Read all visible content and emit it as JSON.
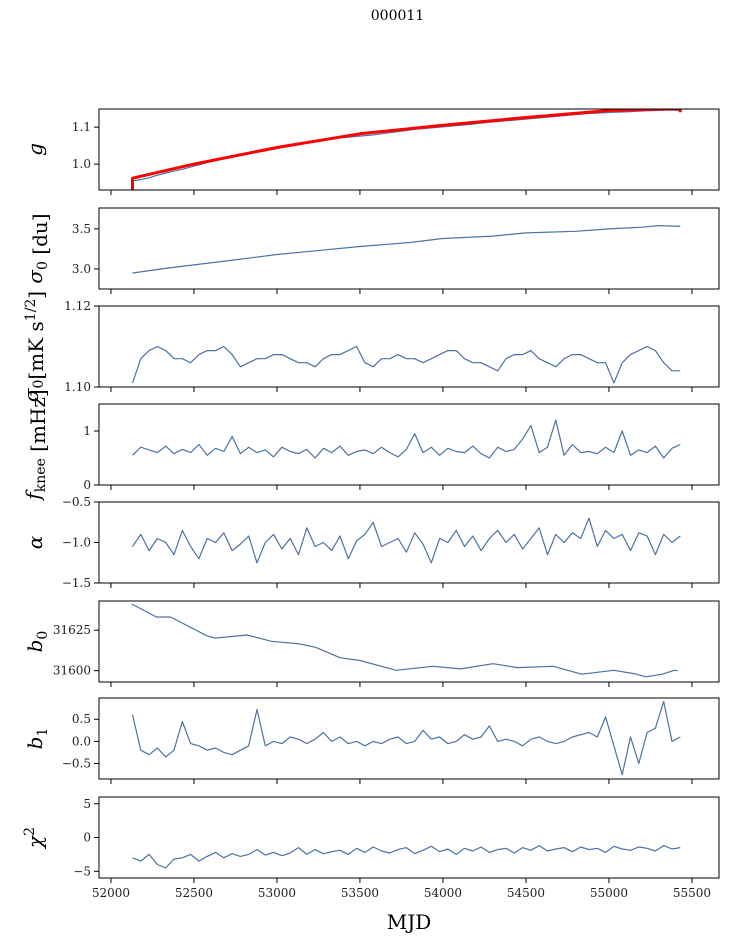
{
  "title": "000011",
  "chart_data": {
    "type": "line",
    "title": "000011",
    "xlabel": "MJD",
    "xlim": [
      51928,
      55663
    ],
    "xticks": [
      52000,
      52500,
      53000,
      53500,
      54000,
      54500,
      55000,
      55500
    ],
    "line_color": "#4c72a4",
    "model_color": "#ff0000",
    "panels": [
      {
        "name": "g",
        "ylabel": {
          "base": "g",
          "sub": "",
          "sup": "",
          "unit": ""
        },
        "ylim": [
          0.93,
          1.149
        ],
        "yticks": [
          1.0,
          1.1
        ],
        "ytick_labels": [
          "1.0",
          "1.1"
        ],
        "series": [
          {
            "name": "g",
            "x_start": 52130,
            "x_step": 50,
            "y": [
              0.955,
              0.958,
              0.963,
              0.97,
              0.976,
              0.981,
              0.986,
              0.992,
              0.998,
              1.004,
              1.01,
              1.016,
              1.022,
              1.027,
              1.03,
              1.033,
              1.036,
              1.04,
              1.045,
              1.05,
              1.055,
              1.058,
              1.061,
              1.064,
              1.068,
              1.071,
              1.073,
              1.075,
              1.077,
              1.079,
              1.082,
              1.085,
              1.088,
              1.091,
              1.094,
              1.096,
              1.098,
              1.1,
              1.102,
              1.104,
              1.106,
              1.108,
              1.111,
              1.113,
              1.115,
              1.117,
              1.119,
              1.121,
              1.123,
              1.125,
              1.127,
              1.129,
              1.131,
              1.133,
              1.135,
              1.137,
              1.138,
              1.139,
              1.14,
              1.141,
              1.142,
              1.143,
              1.144,
              1.145,
              1.146,
              1.146,
              1.145
            ]
          },
          {
            "name": "model",
            "model": true,
            "x": [
              52130,
              52130,
              52500,
              53000,
              53500,
              54000,
              54500,
              55000,
              55430,
              55430
            ],
            "y": [
              0.93,
              0.962,
              1.0,
              1.045,
              1.082,
              1.105,
              1.126,
              1.145,
              1.15,
              1.14
            ]
          }
        ]
      },
      {
        "name": "sigma0-du",
        "ylabel": {
          "base": "σ",
          "sub": "0",
          "sup": "",
          "unit": " [du]"
        },
        "ylim": [
          2.75,
          3.76
        ],
        "yticks": [
          3.0,
          3.5
        ],
        "ytick_labels": [
          "3.0",
          "3.5"
        ],
        "series": [
          {
            "name": "sigma0_du",
            "x": [
              52130,
              52300,
              52500,
              52700,
              53000,
              53200,
              53500,
              53800,
              54000,
              54300,
              54500,
              54800,
              55000,
              55200,
              55300,
              55430
            ],
            "y": [
              2.95,
              3.0,
              3.05,
              3.1,
              3.18,
              3.22,
              3.28,
              3.33,
              3.38,
              3.41,
              3.45,
              3.47,
              3.5,
              3.52,
              3.54,
              3.53
            ]
          }
        ]
      },
      {
        "name": "sigma0-mk",
        "ylabel": {
          "base": "σ",
          "sub": "0",
          "sup": "1/2",
          "unit": "[mK s"
        },
        "ylim": [
          1.1,
          1.12
        ],
        "yticks": [
          1.1,
          1.12
        ],
        "ytick_labels": [
          "1.10",
          "1.12"
        ],
        "series": [
          {
            "name": "sigma0_mK",
            "x_start": 52130,
            "x_step": 50,
            "y": [
              1.101,
              1.107,
              1.109,
              1.11,
              1.109,
              1.107,
              1.107,
              1.106,
              1.108,
              1.109,
              1.109,
              1.11,
              1.108,
              1.105,
              1.106,
              1.107,
              1.107,
              1.108,
              1.108,
              1.107,
              1.106,
              1.106,
              1.105,
              1.107,
              1.108,
              1.108,
              1.109,
              1.11,
              1.106,
              1.105,
              1.107,
              1.107,
              1.108,
              1.107,
              1.107,
              1.106,
              1.107,
              1.108,
              1.109,
              1.109,
              1.107,
              1.106,
              1.106,
              1.105,
              1.104,
              1.107,
              1.108,
              1.108,
              1.109,
              1.107,
              1.106,
              1.105,
              1.107,
              1.108,
              1.108,
              1.107,
              1.106,
              1.106,
              1.101,
              1.106,
              1.108,
              1.109,
              1.11,
              1.109,
              1.106,
              1.104,
              1.104
            ]
          }
        ]
      },
      {
        "name": "fknee",
        "ylabel": {
          "base": "f",
          "sub": "knee",
          "sup": "",
          "unit": " [mHz]"
        },
        "ylim": [
          0,
          1.5
        ],
        "yticks": [
          0,
          1
        ],
        "ytick_labels": [
          "0",
          "1"
        ],
        "series": [
          {
            "name": "fknee",
            "x_start": 52130,
            "x_step": 50,
            "y": [
              0.55,
              0.7,
              0.65,
              0.6,
              0.72,
              0.58,
              0.66,
              0.6,
              0.75,
              0.55,
              0.68,
              0.62,
              0.9,
              0.58,
              0.7,
              0.6,
              0.65,
              0.52,
              0.7,
              0.62,
              0.58,
              0.66,
              0.5,
              0.68,
              0.6,
              0.72,
              0.55,
              0.62,
              0.65,
              0.58,
              0.7,
              0.6,
              0.52,
              0.66,
              0.95,
              0.6,
              0.7,
              0.55,
              0.68,
              0.62,
              0.6,
              0.72,
              0.58,
              0.5,
              0.7,
              0.62,
              0.66,
              0.85,
              1.1,
              0.6,
              0.7,
              1.2,
              0.55,
              0.75,
              0.6,
              0.62,
              0.58,
              0.7,
              0.6,
              1.0,
              0.55,
              0.65,
              0.6,
              0.72,
              0.5,
              0.68,
              0.75
            ]
          }
        ]
      },
      {
        "name": "alpha",
        "ylabel": {
          "base": "α",
          "sub": "",
          "sup": "",
          "unit": ""
        },
        "ylim": [
          -1.5,
          -0.5
        ],
        "yticks": [
          -1.5,
          -1.0,
          -0.5
        ],
        "ytick_labels": [
          "−1.5",
          "−1.0",
          "−0.5"
        ],
        "series": [
          {
            "name": "alpha",
            "x_start": 52130,
            "x_step": 50,
            "y": [
              -1.05,
              -0.9,
              -1.1,
              -0.95,
              -1.0,
              -1.15,
              -0.85,
              -1.05,
              -1.2,
              -0.95,
              -1.0,
              -0.88,
              -1.1,
              -1.02,
              -0.92,
              -1.25,
              -1.0,
              -0.9,
              -1.08,
              -0.95,
              -1.15,
              -0.82,
              -1.05,
              -1.0,
              -1.1,
              -0.92,
              -1.2,
              -0.98,
              -0.9,
              -0.75,
              -1.05,
              -1.0,
              -0.95,
              -1.12,
              -0.88,
              -1.02,
              -1.25,
              -0.95,
              -1.0,
              -0.85,
              -1.05,
              -0.92,
              -1.1,
              -0.95,
              -0.85,
              -1.0,
              -0.9,
              -1.08,
              -0.95,
              -0.82,
              -1.15,
              -0.9,
              -1.0,
              -0.88,
              -0.95,
              -0.7,
              -1.05,
              -0.85,
              -0.95,
              -0.9,
              -1.1,
              -0.88,
              -0.92,
              -1.15,
              -0.9,
              -1.0,
              -0.92
            ]
          }
        ]
      },
      {
        "name": "b0",
        "ylabel": {
          "base": "b",
          "sub": "0",
          "sup": "",
          "unit": ""
        },
        "ylim": [
          31593,
          31643
        ],
        "yticks": [
          31600,
          31625
        ],
        "ytick_labels": [
          "31600",
          "31625"
        ],
        "series": [
          {
            "name": "b0",
            "x": [
              52124,
              52274,
              52359,
              52578,
              52626,
              52820,
              52966,
              53136,
              53233,
              53379,
              53500,
              53718,
              53937,
              54107,
              54301,
              54447,
              54665,
              54835,
              55029,
              55150,
              55223,
              55320,
              55393,
              55414
            ],
            "y": [
              31641.2,
              31633.1,
              31633.1,
              31621.5,
              31620.1,
              31622,
              31618.1,
              31616.5,
              31614.4,
              31608,
              31606.3,
              31600.2,
              31602.7,
              31601.1,
              31604.3,
              31601.9,
              31602.7,
              31597.8,
              31600.2,
              31598.2,
              31596.2,
              31597.8,
              31600.2,
              31600
            ]
          }
        ]
      },
      {
        "name": "b1",
        "ylabel": {
          "base": "b",
          "sub": "1",
          "sup": "",
          "unit": ""
        },
        "ylim": [
          -0.85,
          0.98
        ],
        "yticks": [
          -0.5,
          0.0,
          0.5
        ],
        "ytick_labels": [
          "−0.5",
          "0.0",
          "0.5"
        ],
        "series": [
          {
            "name": "b1",
            "x_start": 52130,
            "x_step": 50,
            "y": [
              0.6,
              -0.2,
              -0.3,
              -0.15,
              -0.35,
              -0.2,
              0.45,
              -0.05,
              -0.1,
              -0.2,
              -0.15,
              -0.25,
              -0.3,
              -0.2,
              -0.1,
              0.72,
              -0.1,
              0.0,
              -0.05,
              0.1,
              0.05,
              -0.05,
              0.05,
              0.2,
              0.0,
              0.1,
              -0.05,
              0.0,
              -0.1,
              0.0,
              -0.05,
              0.05,
              0.1,
              -0.05,
              0.0,
              0.25,
              0.05,
              0.1,
              -0.05,
              0.0,
              0.15,
              0.05,
              0.1,
              0.35,
              0.0,
              0.05,
              0.0,
              -0.1,
              0.05,
              0.1,
              0.0,
              -0.05,
              0.0,
              0.1,
              0.15,
              0.2,
              0.1,
              0.55,
              -0.1,
              -0.75,
              0.1,
              -0.5,
              0.2,
              0.3,
              0.9,
              0.0,
              0.1
            ]
          }
        ]
      },
      {
        "name": "chi2",
        "ylabel": {
          "base": "χ",
          "sub": "",
          "sup": "2",
          "unit": ""
        },
        "ylim": [
          -6,
          6
        ],
        "yticks": [
          -5,
          0,
          5
        ],
        "ytick_labels": [
          "−5",
          "0",
          "5"
        ],
        "series": [
          {
            "name": "chi2",
            "x_start": 52130,
            "x_step": 50,
            "y": [
              -3,
              -3.5,
              -2.5,
              -4,
              -4.5,
              -3.2,
              -3,
              -2.5,
              -3.5,
              -2.8,
              -2.2,
              -3,
              -2.4,
              -2.8,
              -2.5,
              -1.8,
              -2.6,
              -2.2,
              -2.7,
              -2.3,
              -1.5,
              -2.5,
              -1.8,
              -2.4,
              -2.1,
              -1.9,
              -2.5,
              -1.6,
              -2.2,
              -1.4,
              -2,
              -2.3,
              -1.8,
              -1.5,
              -2.4,
              -1.9,
              -1.3,
              -2.1,
              -1.7,
              -2.5,
              -1.6,
              -2,
              -1.4,
              -2.2,
              -1.8,
              -1.6,
              -2.3,
              -1.5,
              -1.9,
              -1.2,
              -2,
              -1.7,
              -1.5,
              -2.1,
              -1.4,
              -1.8,
              -1.6,
              -2.2,
              -1.3,
              -1.7,
              -1.9,
              -1.4,
              -1.6,
              -2,
              -1.2,
              -1.7,
              -1.5
            ]
          }
        ]
      }
    ]
  }
}
